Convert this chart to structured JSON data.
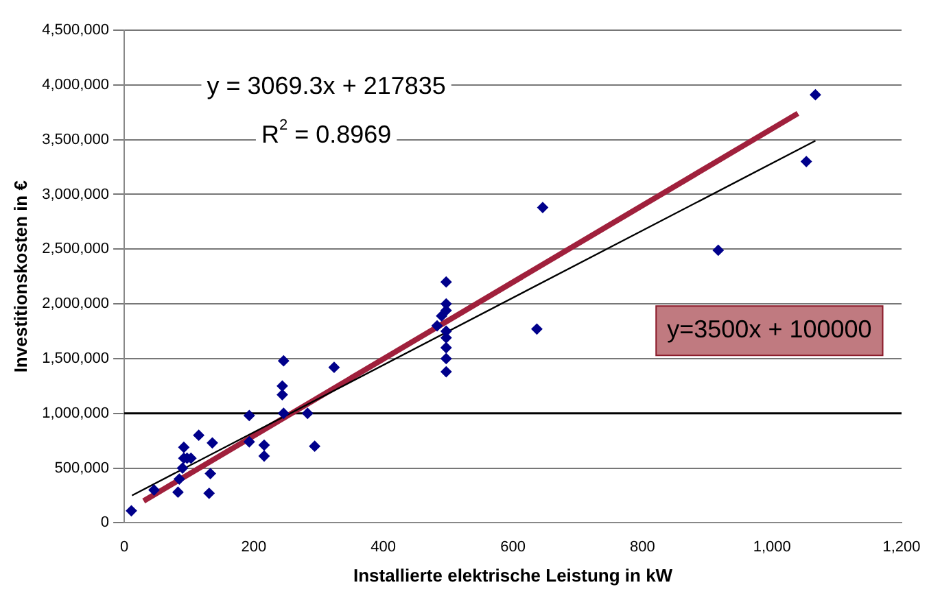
{
  "chart_data": {
    "type": "scatter",
    "xlabel": "Installierte elektrische Leistung in kW",
    "ylabel": "Investitionskosten in €",
    "x": [
      11,
      46,
      83,
      85,
      90,
      92,
      97,
      92,
      103,
      115,
      136,
      133,
      131,
      193,
      193,
      216,
      216,
      246,
      244,
      244,
      246,
      283,
      294,
      324,
      497,
      497,
      497,
      490,
      483,
      497,
      497,
      497,
      497,
      497,
      637,
      646,
      917,
      1053,
      1067
    ],
    "series": [
      {
        "color": "#00008b",
        "values": [
          110000,
          300000,
          280000,
          400000,
          500000,
          590000,
          590000,
          690000,
          590000,
          800000,
          730000,
          450000,
          270000,
          980000,
          740000,
          710000,
          610000,
          1000000,
          1170000,
          1250000,
          1480000,
          1000000,
          700000,
          1420000,
          2200000,
          2000000,
          1940000,
          1890000,
          1800000,
          1750000,
          1690000,
          1600000,
          1500000,
          1380000,
          1770000,
          2880000,
          2490000,
          3300000,
          3910000
        ]
      },
      {
        "type": "line",
        "marker": "none",
        "color": "#000000",
        "x": [
          12,
          1067
        ],
        "values": [
          250000,
          3490000
        ]
      },
      {
        "type": "line",
        "marker": "none",
        "color": "#a0203c",
        "x": [
          30,
          1040
        ],
        "values": [
          200000,
          3740000
        ]
      }
    ],
    "xlim": [
      0,
      1200
    ],
    "xticks": [
      0,
      {
        "value": 200,
        "label": "200"
      },
      {
        "value": 400,
        "label": "400"
      },
      {
        "value": 600,
        "label": "600"
      },
      {
        "value": 800,
        "label": "800"
      },
      {
        "value": 1000,
        "label": "1,000"
      },
      {
        "value": 1200,
        "label": "1,200"
      }
    ],
    "ylim": [
      0,
      4500000
    ],
    "yticks": [
      0,
      {
        "value": 500000,
        "label": "500,000"
      },
      {
        "value": 1000000,
        "label": "1,000,000"
      },
      {
        "value": 1500000,
        "label": "1,500,000"
      },
      {
        "value": 2000000,
        "label": "2,000,000"
      },
      {
        "value": 2500000,
        "label": "2,500,000"
      },
      {
        "value": 3000000,
        "label": "3,000,000"
      },
      {
        "value": 3500000,
        "label": "3,500,000"
      },
      {
        "value": 4000000,
        "label": "4,000,000"
      },
      {
        "value": 4500000,
        "label": "4,500,000"
      }
    ],
    "ref_lines": [
      {
        "axis": "y",
        "value": 1000000,
        "color": "#000000"
      }
    ],
    "grid": "y",
    "legend": false,
    "marker": "diamond",
    "annotations": [
      "y = 3069.3x + 217835",
      "R$^{2}$ = 0.8969",
      "y=3500x + 100000"
    ]
  }
}
